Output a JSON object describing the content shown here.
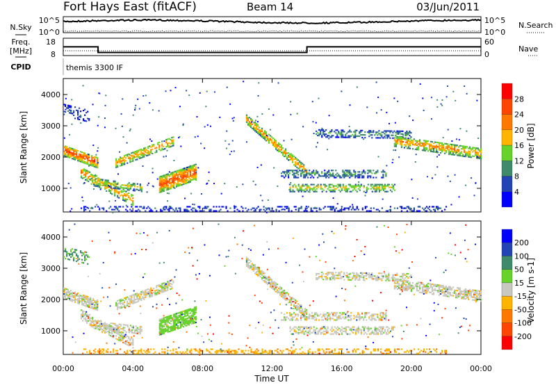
{
  "header": {
    "station": "Fort Hays East (fitACF)",
    "beam": "Beam 14",
    "date": "03/Jun/2011"
  },
  "strip": {
    "nsky_label": "N.Sky",
    "nsky_ticks": [
      "10^5",
      "10^0"
    ],
    "nsearch_label": "N.Search",
    "freq_label_1": "Freq.",
    "freq_label_2": "[MHz]",
    "freq_ticks": [
      "18",
      "8"
    ],
    "nave_label": "Nave",
    "nave_ticks": [
      "60",
      "0"
    ],
    "cpid_label": "CPID",
    "cpid_value": "themis 3300 IF",
    "freq_steps": [
      {
        "t0": 0,
        "t1": 2,
        "freq": 15
      },
      {
        "t0": 2,
        "t1": 14,
        "freq": 10.5
      },
      {
        "t0": 14,
        "t1": 24,
        "freq": 15
      }
    ],
    "nave_steps": [
      {
        "t0": 0,
        "t1": 24,
        "nave": 12
      }
    ]
  },
  "chart_data": [
    {
      "type": "heatmap",
      "name": "power",
      "ylabel": "Slant Range [km]",
      "xlabel": "",
      "ylim": [
        244,
        4511
      ],
      "xlim": [
        0,
        24
      ],
      "yticks": [
        "4000",
        "3000",
        "2000",
        "1000"
      ],
      "ytick_values": [
        4000,
        3000,
        2000,
        1000
      ],
      "cbar_label": "Power [dB]",
      "cbar_ticks": [
        "28",
        "24",
        "20",
        "16",
        "12",
        "8",
        "4"
      ],
      "cbar_colors": [
        "#0000ff",
        "#2244b4",
        "#3e8a6a",
        "#66d22a",
        "#ffb400",
        "#ff7800",
        "#ff4600",
        "#ff0000"
      ]
    },
    {
      "type": "heatmap",
      "name": "velocity",
      "ylabel": "Slant Range [km]",
      "xlabel": "Time UT",
      "ylim": [
        244,
        4511
      ],
      "xlim": [
        0,
        24
      ],
      "yticks": [
        "4000",
        "3000",
        "2000",
        "1000"
      ],
      "ytick_values": [
        4000,
        3000,
        2000,
        1000
      ],
      "xticks": [
        "00:00",
        "04:00",
        "08:00",
        "12:00",
        "16:00",
        "20:00",
        "00:00"
      ],
      "cbar_label": "Velocity [m s-1]",
      "cbar_ticks": [
        "200",
        "100",
        "50",
        "15",
        "-15",
        "-50",
        "-100",
        "-200"
      ],
      "cbar_colors": [
        "#ff0000",
        "#ff4600",
        "#ff7800",
        "#ffb400",
        "#c8c8c0",
        "#66d22a",
        "#3e8a6a",
        "#2244b4",
        "#0000ff"
      ]
    }
  ],
  "echo_regions": [
    {
      "t0": 0,
      "t1": 2,
      "r0": 2200,
      "r1": 1800,
      "w": 350,
      "p": 24,
      "v": 0,
      "d": 0.8
    },
    {
      "t0": 0,
      "t1": 1.5,
      "r0": 3500,
      "r1": 3300,
      "w": 400,
      "p": 6,
      "v": 60,
      "d": 0.35
    },
    {
      "t0": 1,
      "t1": 4,
      "r0": 1500,
      "r1": 600,
      "w": 350,
      "p": 20,
      "v": 0,
      "d": 0.6
    },
    {
      "t0": 1.5,
      "t1": 4.5,
      "r0": 1200,
      "r1": 1000,
      "w": 250,
      "p": 16,
      "v": 0,
      "d": 0.5
    },
    {
      "t0": 3,
      "t1": 6.3,
      "r0": 1800,
      "r1": 2500,
      "w": 300,
      "p": 20,
      "v": 0,
      "d": 0.6
    },
    {
      "t0": 5.5,
      "t1": 7.6,
      "r0": 1100,
      "r1": 1500,
      "w": 500,
      "p": 24,
      "v": 30,
      "d": 0.8
    },
    {
      "t0": 10.5,
      "t1": 14,
      "r0": 3200,
      "r1": 1500,
      "w": 300,
      "p": 20,
      "v": 0,
      "d": 0.7
    },
    {
      "t0": 12.5,
      "t1": 18.5,
      "r0": 1450,
      "r1": 1450,
      "w": 250,
      "p": 10,
      "v": 0,
      "d": 0.45
    },
    {
      "t0": 13,
      "t1": 19,
      "r0": 1000,
      "r1": 1000,
      "w": 250,
      "p": 16,
      "v": 0,
      "d": 0.5
    },
    {
      "t0": 14.5,
      "t1": 20,
      "r0": 2750,
      "r1": 2700,
      "w": 250,
      "p": 10,
      "v": 0,
      "d": 0.5
    },
    {
      "t0": 19,
      "t1": 24,
      "r0": 2500,
      "r1": 2100,
      "w": 350,
      "p": 20,
      "v": 0,
      "d": 0.65
    },
    {
      "t0": 1,
      "t1": 22,
      "r0": 330,
      "r1": 330,
      "w": 150,
      "p": 6,
      "v": -40,
      "d": 0.3
    }
  ]
}
